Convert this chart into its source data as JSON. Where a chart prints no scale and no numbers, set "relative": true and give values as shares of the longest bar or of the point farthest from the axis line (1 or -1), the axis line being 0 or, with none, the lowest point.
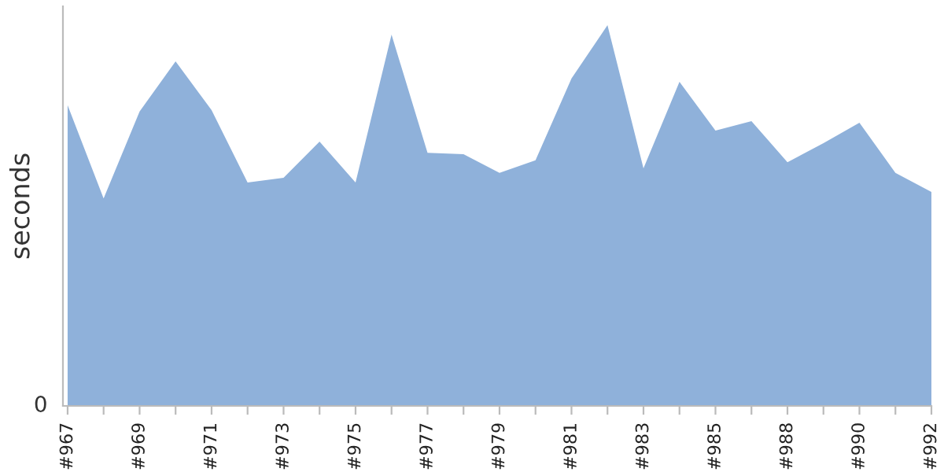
{
  "chart_data": {
    "type": "area",
    "ylabel": "seconds",
    "relative": true,
    "annotations": [
      "0"
    ],
    "color": "#8fb1da",
    "grid": false,
    "legend": false,
    "categories": [
      "#967",
      null,
      "#969",
      null,
      "#971",
      null,
      "#973",
      null,
      "#975",
      null,
      "#977",
      null,
      "#979",
      null,
      "#981",
      null,
      "#983",
      null,
      "#985",
      null,
      "#988",
      null,
      "#990",
      null,
      "#992"
    ],
    "values": [
      0.79,
      0.545,
      0.773,
      0.905,
      0.777,
      0.587,
      0.599,
      0.694,
      0.587,
      0.975,
      0.665,
      0.661,
      0.612,
      0.645,
      0.86,
      1,
      0.624,
      0.851,
      0.723,
      0.748,
      0.64,
      0.69,
      0.744,
      0.612,
      0.562
    ]
  }
}
